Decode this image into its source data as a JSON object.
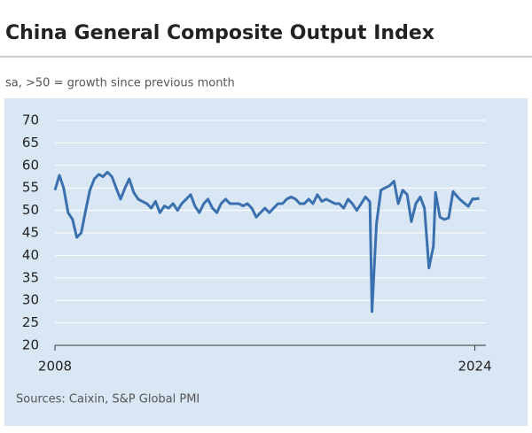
{
  "chart_data": {
    "type": "line",
    "title": "China General Composite Output Index",
    "subtitle": "sa, >50 = growth since previous month",
    "source": "Sources: Caixin, S&P Global PMI",
    "color": "#3a70ad",
    "grid": true,
    "x": [
      2008.0,
      2008.17,
      2008.33,
      2008.5,
      2008.67,
      2008.83,
      2009.0,
      2009.17,
      2009.33,
      2009.5,
      2009.67,
      2009.83,
      2010.0,
      2010.17,
      2010.33,
      2010.5,
      2010.67,
      2010.83,
      2011.0,
      2011.17,
      2011.33,
      2011.5,
      2011.67,
      2011.83,
      2012.0,
      2012.17,
      2012.33,
      2012.5,
      2012.67,
      2012.83,
      2013.0,
      2013.17,
      2013.33,
      2013.5,
      2013.67,
      2013.83,
      2014.0,
      2014.17,
      2014.33,
      2014.5,
      2014.67,
      2014.83,
      2015.0,
      2015.17,
      2015.33,
      2015.5,
      2015.67,
      2015.83,
      2016.0,
      2016.17,
      2016.33,
      2016.5,
      2016.67,
      2016.83,
      2017.0,
      2017.17,
      2017.33,
      2017.5,
      2017.67,
      2017.83,
      2018.0,
      2018.17,
      2018.33,
      2018.5,
      2018.67,
      2018.83,
      2019.0,
      2019.17,
      2019.33,
      2019.5,
      2019.67,
      2019.83,
      2020.0,
      2020.08,
      2020.25,
      2020.42,
      2020.58,
      2020.75,
      2020.92,
      2021.08,
      2021.25,
      2021.42,
      2021.58,
      2021.75,
      2021.92,
      2022.08,
      2022.25,
      2022.42,
      2022.5,
      2022.67,
      2022.83,
      2023.0,
      2023.08,
      2023.17,
      2023.25,
      2023.42,
      2023.58,
      2023.75,
      2023.92,
      2024.0,
      2024.17
    ],
    "values": [
      54.5,
      57.8,
      55,
      49.5,
      48,
      44,
      45,
      50,
      54.5,
      57,
      58,
      57.5,
      58.5,
      57.5,
      55,
      52.5,
      55,
      57,
      54,
      52.5,
      52,
      51.5,
      50.5,
      52,
      49.5,
      51,
      50.5,
      51.5,
      50,
      51.5,
      52.5,
      53.5,
      51,
      49.5,
      51.5,
      52.5,
      50.5,
      49.5,
      51.5,
      52.5,
      51.5,
      51.5,
      51.5,
      51,
      51.5,
      50.5,
      48.5,
      49.5,
      50.5,
      49.5,
      50.5,
      51.5,
      51.5,
      52.5,
      53,
      52.5,
      51.5,
      51.5,
      52.5,
      51.5,
      53.5,
      52,
      52.5,
      52,
      51.5,
      51.5,
      50.5,
      52.5,
      51.5,
      50,
      51.5,
      53,
      51.9,
      27.5,
      47,
      54.5,
      55,
      55.5,
      56.5,
      51.5,
      54.5,
      53.5,
      47.5,
      51.5,
      53,
      50.5,
      37.2,
      42,
      54,
      48.5,
      48,
      48.3,
      51.1,
      54.2,
      53.6,
      52.5,
      51.7,
      50.9,
      52.6,
      52.5,
      52.7
    ],
    "xlim": [
      2008,
      2024.42
    ],
    "xticks": [
      2008,
      2024
    ],
    "ylim": [
      20,
      70
    ],
    "yticks": [
      20,
      25,
      30,
      35,
      40,
      45,
      50,
      55,
      60,
      65,
      70
    ]
  }
}
